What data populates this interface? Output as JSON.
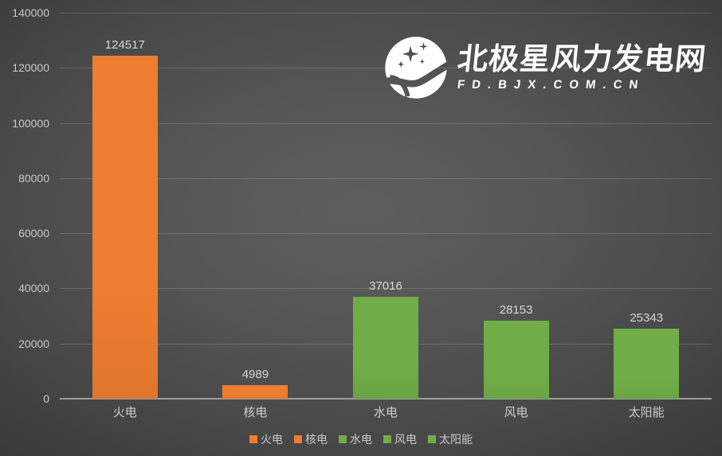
{
  "watermark": {
    "title": "北极星风力发电网",
    "subtitle": "FD.BJX.COM.CN"
  },
  "chart_data": {
    "type": "bar",
    "categories": [
      "火电",
      "核电",
      "水电",
      "风电",
      "太阳能"
    ],
    "values": [
      124517,
      4989,
      37016,
      28153,
      25343
    ],
    "bar_colors": [
      "#ED7D31",
      "#ED7D31",
      "#70AD47",
      "#70AD47",
      "#70AD47"
    ],
    "title": "",
    "xlabel": "",
    "ylabel": "",
    "ylim": [
      0,
      140000
    ],
    "yticks": [
      0,
      20000,
      40000,
      60000,
      80000,
      100000,
      120000,
      140000
    ],
    "grid": true,
    "legend_position": "bottom",
    "legend": [
      {
        "label": "火电",
        "color": "#ED7D31"
      },
      {
        "label": "核电",
        "color": "#ED7D31"
      },
      {
        "label": "水电",
        "color": "#70AD47"
      },
      {
        "label": "风电",
        "color": "#70AD47"
      },
      {
        "label": "太阳能",
        "color": "#70AD47"
      }
    ]
  },
  "colors": {
    "bar_orange": "#ED7D31",
    "bar_green": "#70AD47",
    "axis_text": "#c9c9c9",
    "value_text": "#d6d6d6",
    "gridline": "rgba(255,255,255,0.16)",
    "axis_line": "#9d9d9d",
    "watermark_text": "#ffffff",
    "background_center": "#5e5e5e",
    "background_edge": "#1e1e1e"
  }
}
